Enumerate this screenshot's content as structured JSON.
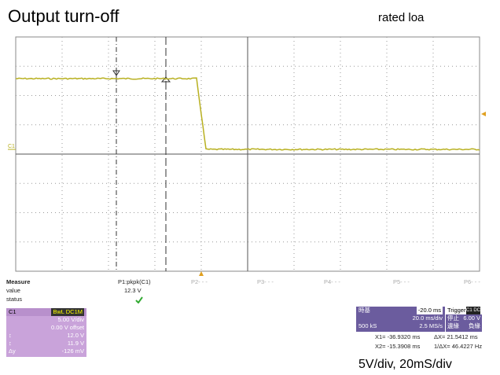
{
  "title": "Output turn-off",
  "note": "rated loa",
  "channel_marker": "C1",
  "measure": {
    "labels": [
      "Measure",
      "value",
      "status"
    ],
    "p1": {
      "name": "P1:pkpk(C1)",
      "value": "12.3 V"
    },
    "others": [
      "P2- - -",
      "P3- - -",
      "P4- - -",
      "P5- - -",
      "P6- - -"
    ]
  },
  "channel_box": {
    "name": "C1",
    "coupling": "BwL DC1M",
    "scale": "5.00 V/div",
    "offset": "0.00 V offset",
    "rows": [
      {
        "symbol": "↕",
        "value": "12.0 V"
      },
      {
        "symbol": "↕",
        "value": "11.9 V"
      },
      {
        "symbol": "Δy",
        "value": "-126 mV"
      }
    ]
  },
  "timebase": {
    "label": "時基",
    "delay": "-20.0 ms",
    "scale": "20.0 ms/div",
    "points": "500 kS",
    "rate": "2.5 MS/s"
  },
  "trigger": {
    "label": "Trigger",
    "badge": "C1 DC",
    "mode": "停止",
    "level": "6.00 V",
    "type": "邊緣",
    "slope": "負緣"
  },
  "cursors": [
    "X1= -36.9320 ms",
    "ΔX= 21.5412 ms",
    "X2= -15.3908 ms",
    "1/ΔX= 46.4227 Hz"
  ],
  "footer": "5V/div, 20mS/div"
}
